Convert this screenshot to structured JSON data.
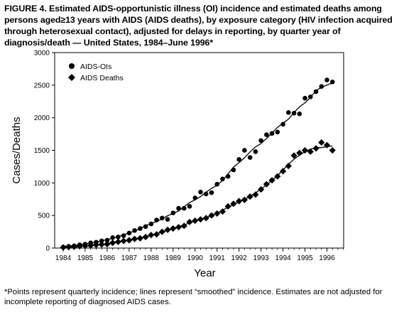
{
  "figure": {
    "title": "FIGURE 4. Estimated AIDS-opportunistic illness (OI) incidence and estimated deaths among persons aged≥13 years with AIDS (AIDS deaths), by exposure category (HIV infection acquired through heterosexual contact), adjusted for delays in reporting, by quarter year of diagnosis/death — United States, 1984–June 1996*",
    "footnote": "*Points represent quarterly incidence; lines represent “smoothed” incidence. Estimates are not adjusted for incomplete reporting of diagnosed AIDS cases."
  },
  "chart_data": {
    "type": "scatter",
    "xlabel": "Year",
    "ylabel": "Cases/Deaths",
    "ylim": [
      0,
      3000
    ],
    "xlim": [
      1984,
      1996.5
    ],
    "yticks": [
      0,
      500,
      1000,
      1500,
      2000,
      2500,
      3000
    ],
    "xticks": [
      "1984",
      "1985",
      "1986",
      "1987",
      "1988",
      "1989",
      "1990",
      "1991",
      "1992",
      "1993",
      "1994",
      "1995",
      "1996"
    ],
    "legend_position": "top-left",
    "series": [
      {
        "name": "AIDS-OIs",
        "marker": "circle",
        "color": "#000000",
        "x": [
          1984.0,
          1984.25,
          1984.5,
          1984.75,
          1985.0,
          1985.25,
          1985.5,
          1985.75,
          1986.0,
          1986.25,
          1986.5,
          1986.75,
          1987.0,
          1987.25,
          1987.5,
          1987.75,
          1988.0,
          1988.25,
          1988.5,
          1988.75,
          1989.0,
          1989.25,
          1989.5,
          1989.75,
          1990.0,
          1990.25,
          1990.5,
          1990.75,
          1991.0,
          1991.25,
          1991.5,
          1991.75,
          1992.0,
          1992.25,
          1992.5,
          1992.75,
          1993.0,
          1993.25,
          1993.5,
          1993.75,
          1994.0,
          1994.25,
          1994.5,
          1994.75,
          1995.0,
          1995.25,
          1995.5,
          1995.75,
          1996.0,
          1996.25
        ],
        "values": [
          15,
          25,
          35,
          50,
          60,
          80,
          90,
          110,
          120,
          160,
          170,
          190,
          230,
          270,
          300,
          330,
          370,
          430,
          460,
          440,
          540,
          610,
          610,
          640,
          770,
          860,
          830,
          850,
          980,
          1060,
          1100,
          1200,
          1360,
          1500,
          1390,
          1480,
          1650,
          1740,
          1760,
          1780,
          1900,
          2080,
          2070,
          2060,
          2300,
          2320,
          2400,
          2480,
          2580,
          2550
        ],
        "smoothed_line": true
      },
      {
        "name": "AIDS Deaths",
        "marker": "diamond",
        "color": "#000000",
        "x": [
          1984.0,
          1984.25,
          1984.5,
          1984.75,
          1985.0,
          1985.25,
          1985.5,
          1985.75,
          1986.0,
          1986.25,
          1986.5,
          1986.75,
          1987.0,
          1987.25,
          1987.5,
          1987.75,
          1988.0,
          1988.25,
          1988.5,
          1988.75,
          1989.0,
          1989.25,
          1989.5,
          1989.75,
          1990.0,
          1990.25,
          1990.5,
          1990.75,
          1991.0,
          1991.25,
          1991.5,
          1991.75,
          1992.0,
          1992.25,
          1992.5,
          1992.75,
          1993.0,
          1993.25,
          1993.5,
          1993.75,
          1994.0,
          1994.25,
          1994.5,
          1994.75,
          1995.0,
          1995.25,
          1995.5,
          1995.75,
          1996.0,
          1996.25
        ],
        "values": [
          10,
          15,
          20,
          30,
          35,
          40,
          50,
          55,
          60,
          80,
          95,
          110,
          120,
          140,
          150,
          170,
          200,
          210,
          250,
          280,
          300,
          320,
          340,
          400,
          420,
          440,
          460,
          500,
          530,
          560,
          640,
          680,
          720,
          740,
          790,
          820,
          900,
          980,
          1040,
          1100,
          1180,
          1260,
          1420,
          1460,
          1500,
          1480,
          1530,
          1620,
          1580,
          1500
        ],
        "smoothed_line": true
      }
    ]
  }
}
